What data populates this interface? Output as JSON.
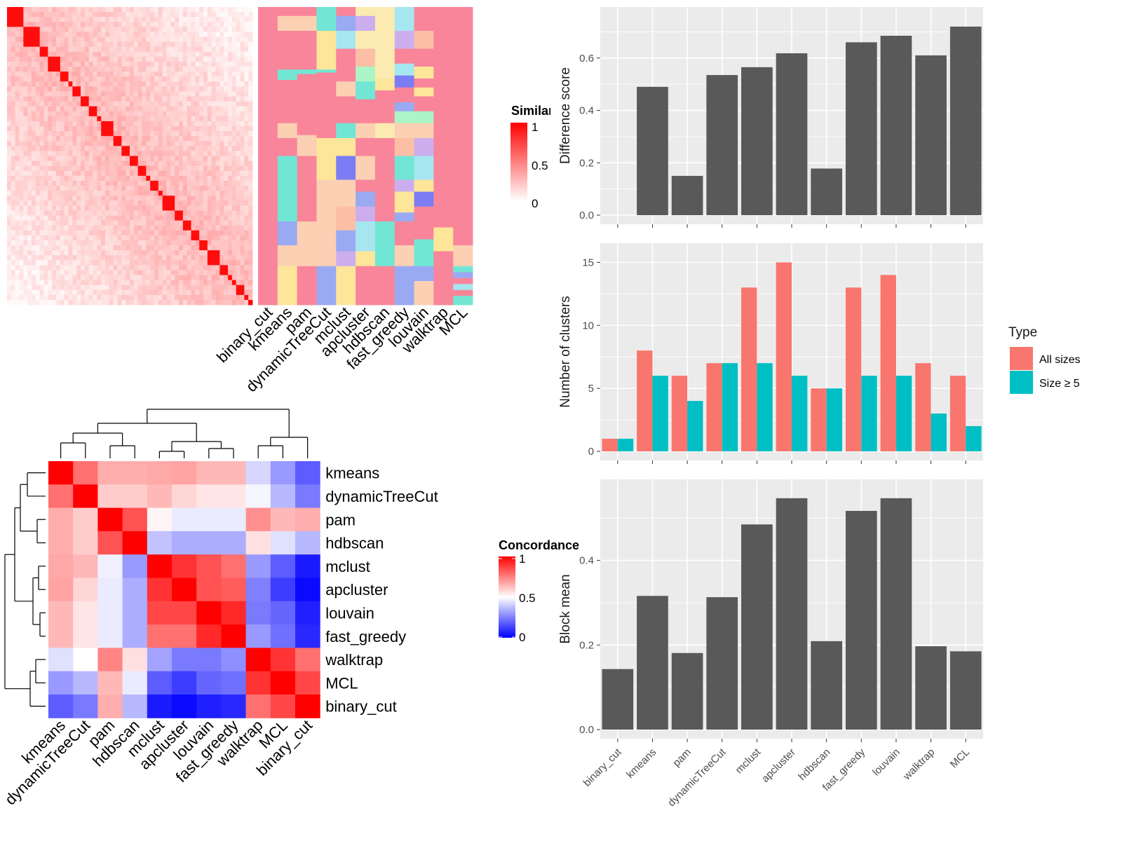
{
  "methods_cluster_order": [
    "binary_cut",
    "kmeans",
    "pam",
    "dynamicTreeCut",
    "mclust",
    "apcluster",
    "hdbscan",
    "fast_greedy",
    "louvain",
    "walktrap",
    "MCL"
  ],
  "top_heatmap": {
    "legend_title": "Similarity",
    "legend_ticks": [
      "1",
      "0.5",
      "0"
    ],
    "low_color": "#ffffff",
    "high_color": "#ff0000",
    "palette": [
      "#f8859a",
      "#fbd0b3",
      "#72e6d4",
      "#fde59a",
      "#a6e6f0",
      "#9aaaf2",
      "#fcebb0",
      "#ccaeee",
      "#7c7cf4",
      "#acf5c6",
      "#fcbfa6"
    ]
  },
  "concordance_heatmap": {
    "legend_title": "Concordance",
    "legend_ticks": [
      "1",
      "0.5",
      "0"
    ],
    "low_color": "#0000ff",
    "mid_color": "#ffffff",
    "high_color": "#ff0000",
    "order": [
      "kmeans",
      "dynamicTreeCut",
      "pam",
      "hdbscan",
      "mclust",
      "apcluster",
      "louvain",
      "fast_greedy",
      "walktrap",
      "MCL",
      "binary_cut"
    ]
  },
  "chart_data": [
    {
      "type": "bar",
      "categories": [
        "binary_cut",
        "kmeans",
        "pam",
        "dynamicTreeCut",
        "mclust",
        "apcluster",
        "hdbscan",
        "fast_greedy",
        "louvain",
        "walktrap",
        "MCL"
      ],
      "values": [
        0.0,
        0.49,
        0.15,
        0.535,
        0.565,
        0.618,
        0.178,
        0.66,
        0.685,
        0.61,
        0.72
      ],
      "ylabel": "Difference score",
      "yticks": [
        "0.0",
        "0.2",
        "0.4",
        "0.6"
      ],
      "ylim": [
        0,
        0.76
      ],
      "bar_color": "#595959"
    },
    {
      "type": "bar",
      "categories": [
        "binary_cut",
        "kmeans",
        "pam",
        "dynamicTreeCut",
        "mclust",
        "apcluster",
        "hdbscan",
        "fast_greedy",
        "louvain",
        "walktrap",
        "MCL"
      ],
      "series": [
        {
          "name": "All sizes",
          "values": [
            1,
            8,
            6,
            7,
            13,
            15,
            5,
            13,
            14,
            7,
            6
          ],
          "color": "#f8766d"
        },
        {
          "name": "Size ≥ 5",
          "values": [
            1,
            6,
            4,
            7,
            7,
            6,
            5,
            6,
            6,
            3,
            2
          ],
          "color": "#00bfc4"
        }
      ],
      "ylabel": "Number of clusters",
      "yticks": [
        "0",
        "5",
        "10",
        "15"
      ],
      "ylim": [
        0,
        15.8
      ],
      "legend_title": "Type",
      "legend_position": "right"
    },
    {
      "type": "bar",
      "categories": [
        "binary_cut",
        "kmeans",
        "pam",
        "dynamicTreeCut",
        "mclust",
        "apcluster",
        "hdbscan",
        "fast_greedy",
        "louvain",
        "walktrap",
        "MCL"
      ],
      "values": [
        0.143,
        0.316,
        0.181,
        0.313,
        0.485,
        0.547,
        0.209,
        0.517,
        0.547,
        0.197,
        0.185
      ],
      "ylabel": "Block mean",
      "yticks": [
        "0.0",
        "0.2",
        "0.4"
      ],
      "ylim": [
        0,
        0.57
      ],
      "bar_color": "#595959"
    },
    {
      "type": "heatmap",
      "title": "",
      "rows": [
        "kmeans",
        "dynamicTreeCut",
        "pam",
        "hdbscan",
        "mclust",
        "apcluster",
        "louvain",
        "fast_greedy",
        "walktrap",
        "MCL",
        "binary_cut"
      ],
      "columns": [
        "kmeans",
        "dynamicTreeCut",
        "pam",
        "hdbscan",
        "mclust",
        "apcluster",
        "louvain",
        "fast_greedy",
        "walktrap",
        "MCL",
        "binary_cut"
      ],
      "values": [
        [
          1.0,
          0.78,
          0.66,
          0.66,
          0.67,
          0.68,
          0.64,
          0.64,
          0.42,
          0.3,
          0.18
        ],
        [
          0.78,
          1.0,
          0.6,
          0.6,
          0.64,
          0.58,
          0.55,
          0.55,
          0.48,
          0.36,
          0.24
        ],
        [
          0.66,
          0.6,
          1.0,
          0.84,
          0.52,
          0.46,
          0.46,
          0.46,
          0.72,
          0.64,
          0.66
        ],
        [
          0.66,
          0.6,
          0.84,
          1.0,
          0.38,
          0.34,
          0.34,
          0.34,
          0.56,
          0.44,
          0.36
        ],
        [
          0.67,
          0.64,
          0.47,
          0.3,
          1.0,
          0.9,
          0.84,
          0.78,
          0.3,
          0.18,
          0.05
        ],
        [
          0.68,
          0.58,
          0.46,
          0.34,
          0.9,
          1.0,
          0.84,
          0.82,
          0.25,
          0.12,
          0.02
        ],
        [
          0.64,
          0.55,
          0.46,
          0.34,
          0.86,
          0.86,
          1.0,
          0.92,
          0.24,
          0.2,
          0.06
        ],
        [
          0.64,
          0.55,
          0.46,
          0.34,
          0.78,
          0.78,
          0.92,
          1.0,
          0.3,
          0.22,
          0.08
        ],
        [
          0.44,
          0.5,
          0.74,
          0.56,
          0.32,
          0.24,
          0.24,
          0.28,
          1.0,
          0.9,
          0.78
        ],
        [
          0.3,
          0.36,
          0.64,
          0.46,
          0.18,
          0.12,
          0.2,
          0.22,
          0.9,
          1.0,
          0.86
        ],
        [
          0.18,
          0.24,
          0.66,
          0.36,
          0.05,
          0.02,
          0.06,
          0.08,
          0.78,
          0.86,
          1.0
        ]
      ]
    }
  ]
}
